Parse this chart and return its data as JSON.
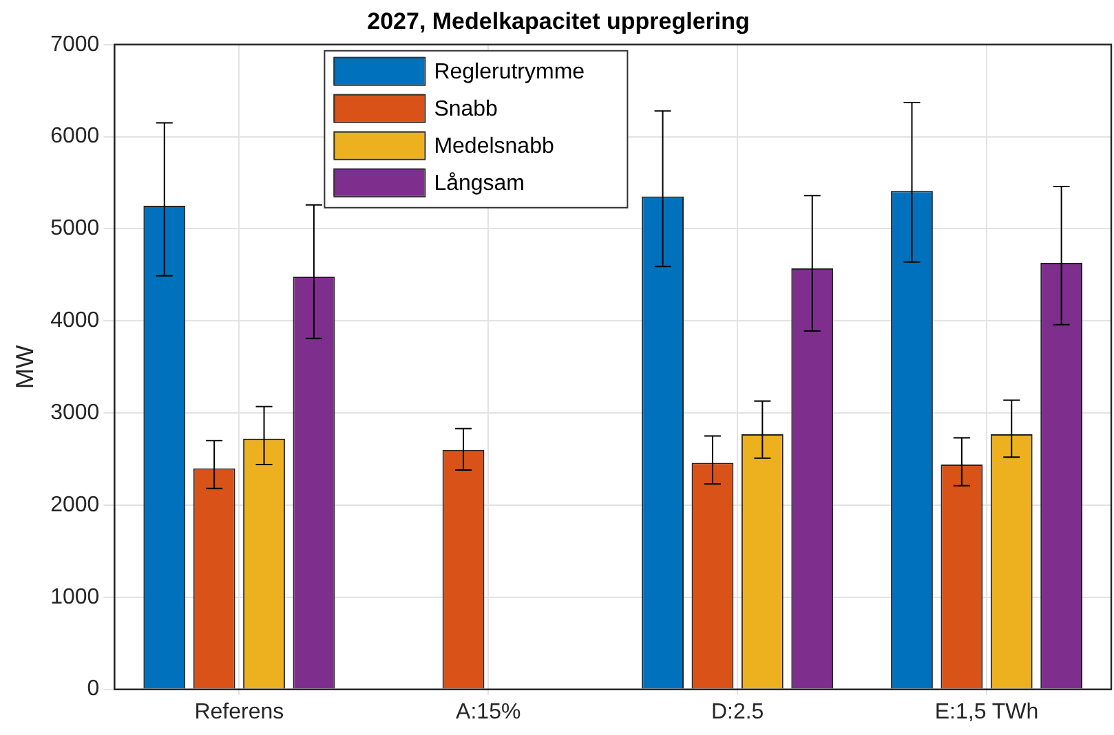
{
  "chart_data": {
    "type": "bar",
    "title": "2027, Medelkapacitet uppreglering",
    "ylabel": "MW",
    "categories": [
      "Referens",
      "A:15%",
      "D:2.5",
      "E:1,5 TWh"
    ],
    "series": [
      {
        "name": "Reglerutrymme",
        "color": "#0072bd",
        "values": [
          5250,
          0,
          5350,
          5410
        ],
        "errors": [
          [
            4490,
            6150
          ],
          null,
          [
            4590,
            6280
          ],
          [
            4640,
            6370
          ]
        ]
      },
      {
        "name": "Snabb",
        "color": "#d95319",
        "values": [
          2400,
          2600,
          2460,
          2440
        ],
        "errors": [
          [
            2180,
            2700
          ],
          [
            2380,
            2830
          ],
          [
            2230,
            2750
          ],
          [
            2210,
            2730
          ]
        ]
      },
      {
        "name": "Medelsnabb",
        "color": "#edb120",
        "values": [
          2720,
          0,
          2770,
          2770
        ],
        "errors": [
          [
            2440,
            3070
          ],
          null,
          [
            2510,
            3130
          ],
          [
            2520,
            3140
          ]
        ]
      },
      {
        "name": "Långsam",
        "color": "#7e2f8e",
        "values": [
          4480,
          0,
          4570,
          4630
        ],
        "errors": [
          [
            3810,
            5260
          ],
          null,
          [
            3890,
            5360
          ],
          [
            3960,
            5460
          ]
        ]
      }
    ],
    "ylim": [
      0,
      7000
    ],
    "yticks": [
      0,
      1000,
      2000,
      3000,
      4000,
      5000,
      6000,
      7000
    ],
    "grid": true,
    "legend": "top left"
  }
}
